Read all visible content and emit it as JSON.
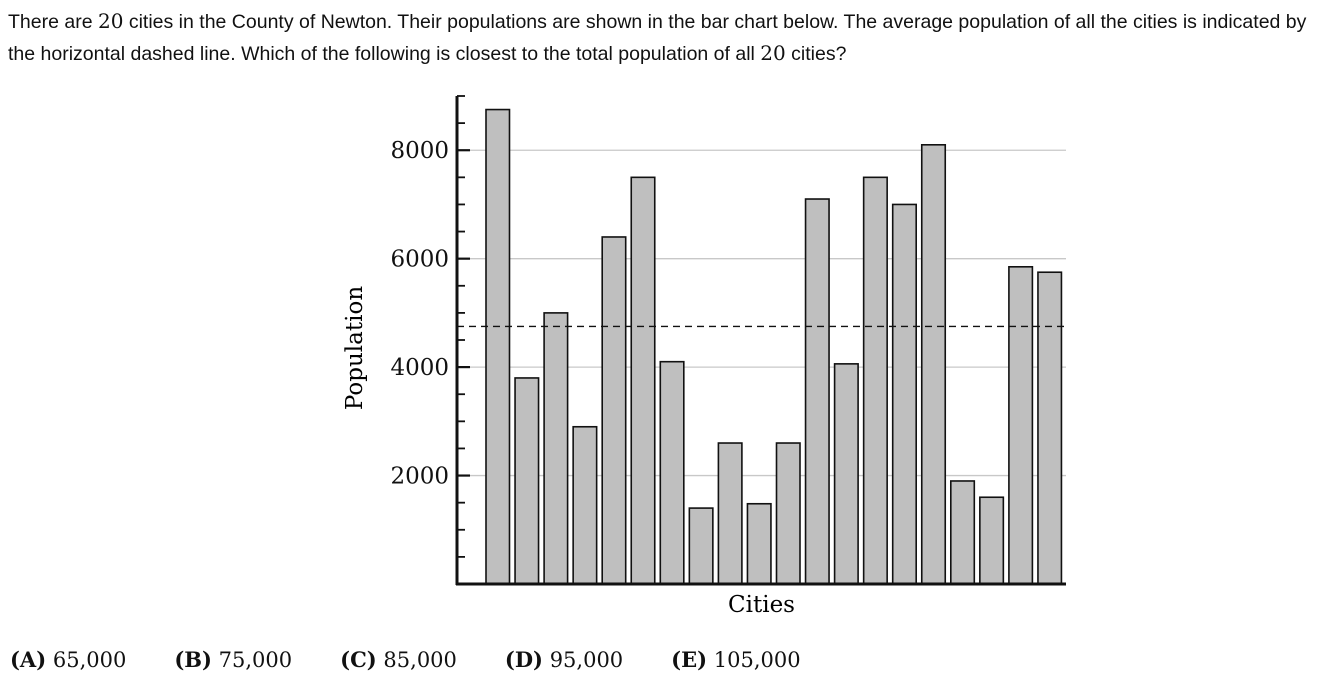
{
  "question": {
    "part1": "There are ",
    "n1": "20",
    "part2": " cities in the County of Newton. Their populations are shown in the bar chart below. The average population of all the cities is indicated by the horizontal dashed line. Which of the following is closest to the total population of all ",
    "n2": "20",
    "part3": " cities?"
  },
  "chart_data": {
    "type": "bar",
    "title": "",
    "xlabel": "Cities",
    "ylabel": "Population",
    "ylim": [
      0,
      9000
    ],
    "yticks": [
      2000,
      4000,
      6000,
      8000
    ],
    "ytick_labels": [
      "2000",
      "4000",
      "6000",
      "8000"
    ],
    "minor_tick_step": 500,
    "grid": "horizontal",
    "values": [
      8750,
      3800,
      5000,
      2900,
      6400,
      7500,
      4100,
      1400,
      2600,
      1480,
      2600,
      7100,
      4060,
      7500,
      7000,
      8100,
      1900,
      1600,
      5850,
      5750
    ],
    "average_line": 4750,
    "colors": {
      "bar_fill": "#bfbfbf",
      "bar_stroke": "#111111",
      "grid": "#c8c8c8",
      "axis": "#111111"
    }
  },
  "choices": [
    {
      "letter": "(A)",
      "text": "65,000"
    },
    {
      "letter": "(B)",
      "text": "75,000"
    },
    {
      "letter": "(C)",
      "text": "85,000"
    },
    {
      "letter": "(D)",
      "text": "95,000"
    },
    {
      "letter": "(E)",
      "text": "105,000"
    }
  ]
}
